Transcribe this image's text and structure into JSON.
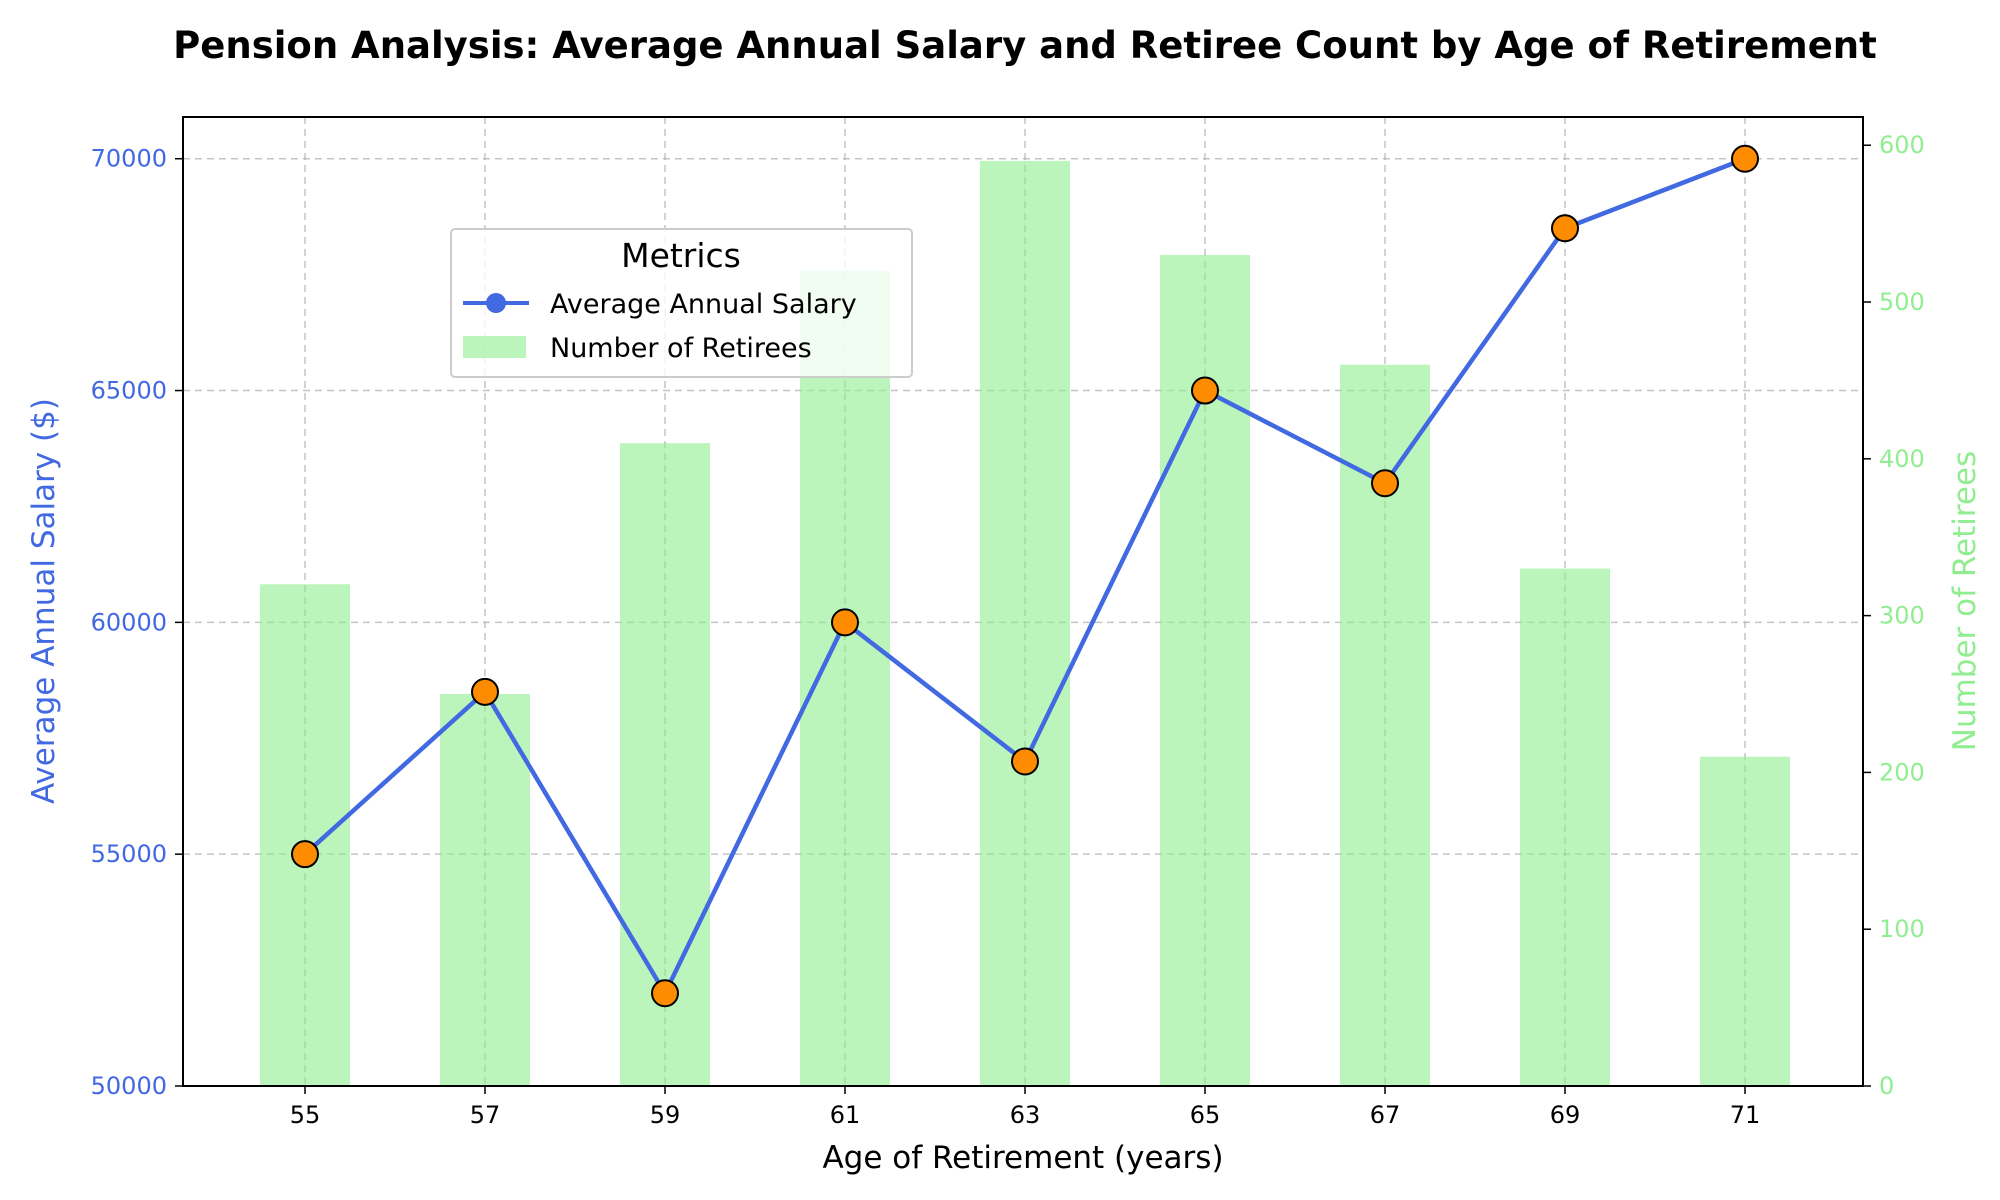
{
  "chart_data": {
    "type": "bar+line",
    "title": "Pension Analysis: Average Annual Salary and Retiree Count by Age of Retirement",
    "xlabel": "Age of Retirement (years)",
    "ylabel_left": "Average Annual Salary ($)",
    "ylabel_right": "Number of Retirees",
    "categories": [
      "55",
      "57",
      "59",
      "61",
      "63",
      "65",
      "67",
      "69",
      "71"
    ],
    "ylim_left": [
      50000,
      70900
    ],
    "ylim_right": [
      0,
      618
    ],
    "yticks_left": [
      50000,
      55000,
      60000,
      65000,
      70000
    ],
    "yticks_right": [
      0,
      100,
      200,
      300,
      400,
      500,
      600
    ],
    "grid": true,
    "series": [
      {
        "name": "Average Annual Salary",
        "kind": "line",
        "axis": "left",
        "color": "#4169e1",
        "marker_color": "#ff8c00",
        "values": [
          55000,
          58500,
          52000,
          60000,
          57000,
          65000,
          63000,
          68500,
          70000
        ]
      },
      {
        "name": "Number of Retirees",
        "kind": "bar",
        "axis": "right",
        "color": "#90ee90",
        "values": [
          320,
          250,
          410,
          520,
          590,
          530,
          460,
          330,
          210
        ]
      }
    ],
    "legend": {
      "title": "Metrics",
      "placement": "upper-left"
    }
  }
}
